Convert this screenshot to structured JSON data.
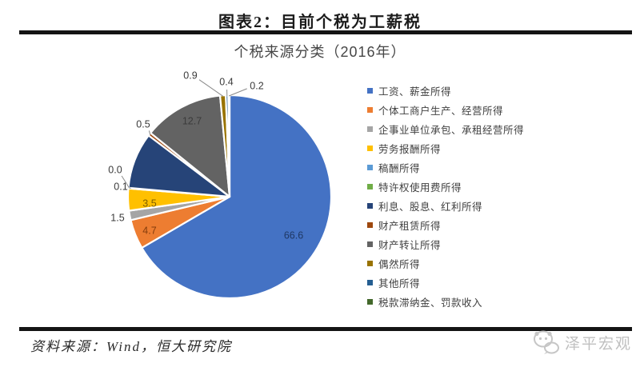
{
  "header": {
    "title": "图表2：目前个税为工薪税"
  },
  "chart_data": {
    "type": "pie",
    "title": "个税来源分类（2016年）",
    "unit": "percent",
    "start_angle_deg": 0,
    "direction": "clockwise",
    "legend_position": "right",
    "categories": [
      "工资、薪金所得",
      "个体工商户生产、经营所得",
      "企事业单位承包、承租经营所得",
      "劳务报酬所得",
      "稿酬所得",
      "特许权使用费所得",
      "利息、股息、红利所得",
      "财产租赁所得",
      "财产转让所得",
      "偶然所得",
      "其他所得",
      "税款滞纳金、罚款收入"
    ],
    "values": [
      66.6,
      4.7,
      1.5,
      3.5,
      0.1,
      0.0,
      8.9,
      0.5,
      12.7,
      0.9,
      0.4,
      0.2
    ],
    "data_labels": [
      "66.6",
      "4.7",
      "1.5",
      "3.5",
      "0.1",
      "0.0",
      "",
      "0.5",
      "12.7",
      "0.9",
      "0.4",
      "0.2"
    ],
    "colors": [
      "#4472C4",
      "#ED7D31",
      "#A5A5A5",
      "#FFC000",
      "#5B9BD5",
      "#70AD47",
      "#264478",
      "#9E480E",
      "#636363",
      "#997300",
      "#255E91",
      "#43682B"
    ],
    "label_colors_inside": {
      "0": "#1F3864",
      "1": "#843C0C",
      "3": "#7F6000",
      "8": "#3B3B3B"
    },
    "outside_label_color": "#3a3a3a",
    "slice_border_color": "#ffffff"
  },
  "footer": {
    "source": "资料来源：Wind，恒大研究院",
    "watermark": "泽平宏观"
  }
}
